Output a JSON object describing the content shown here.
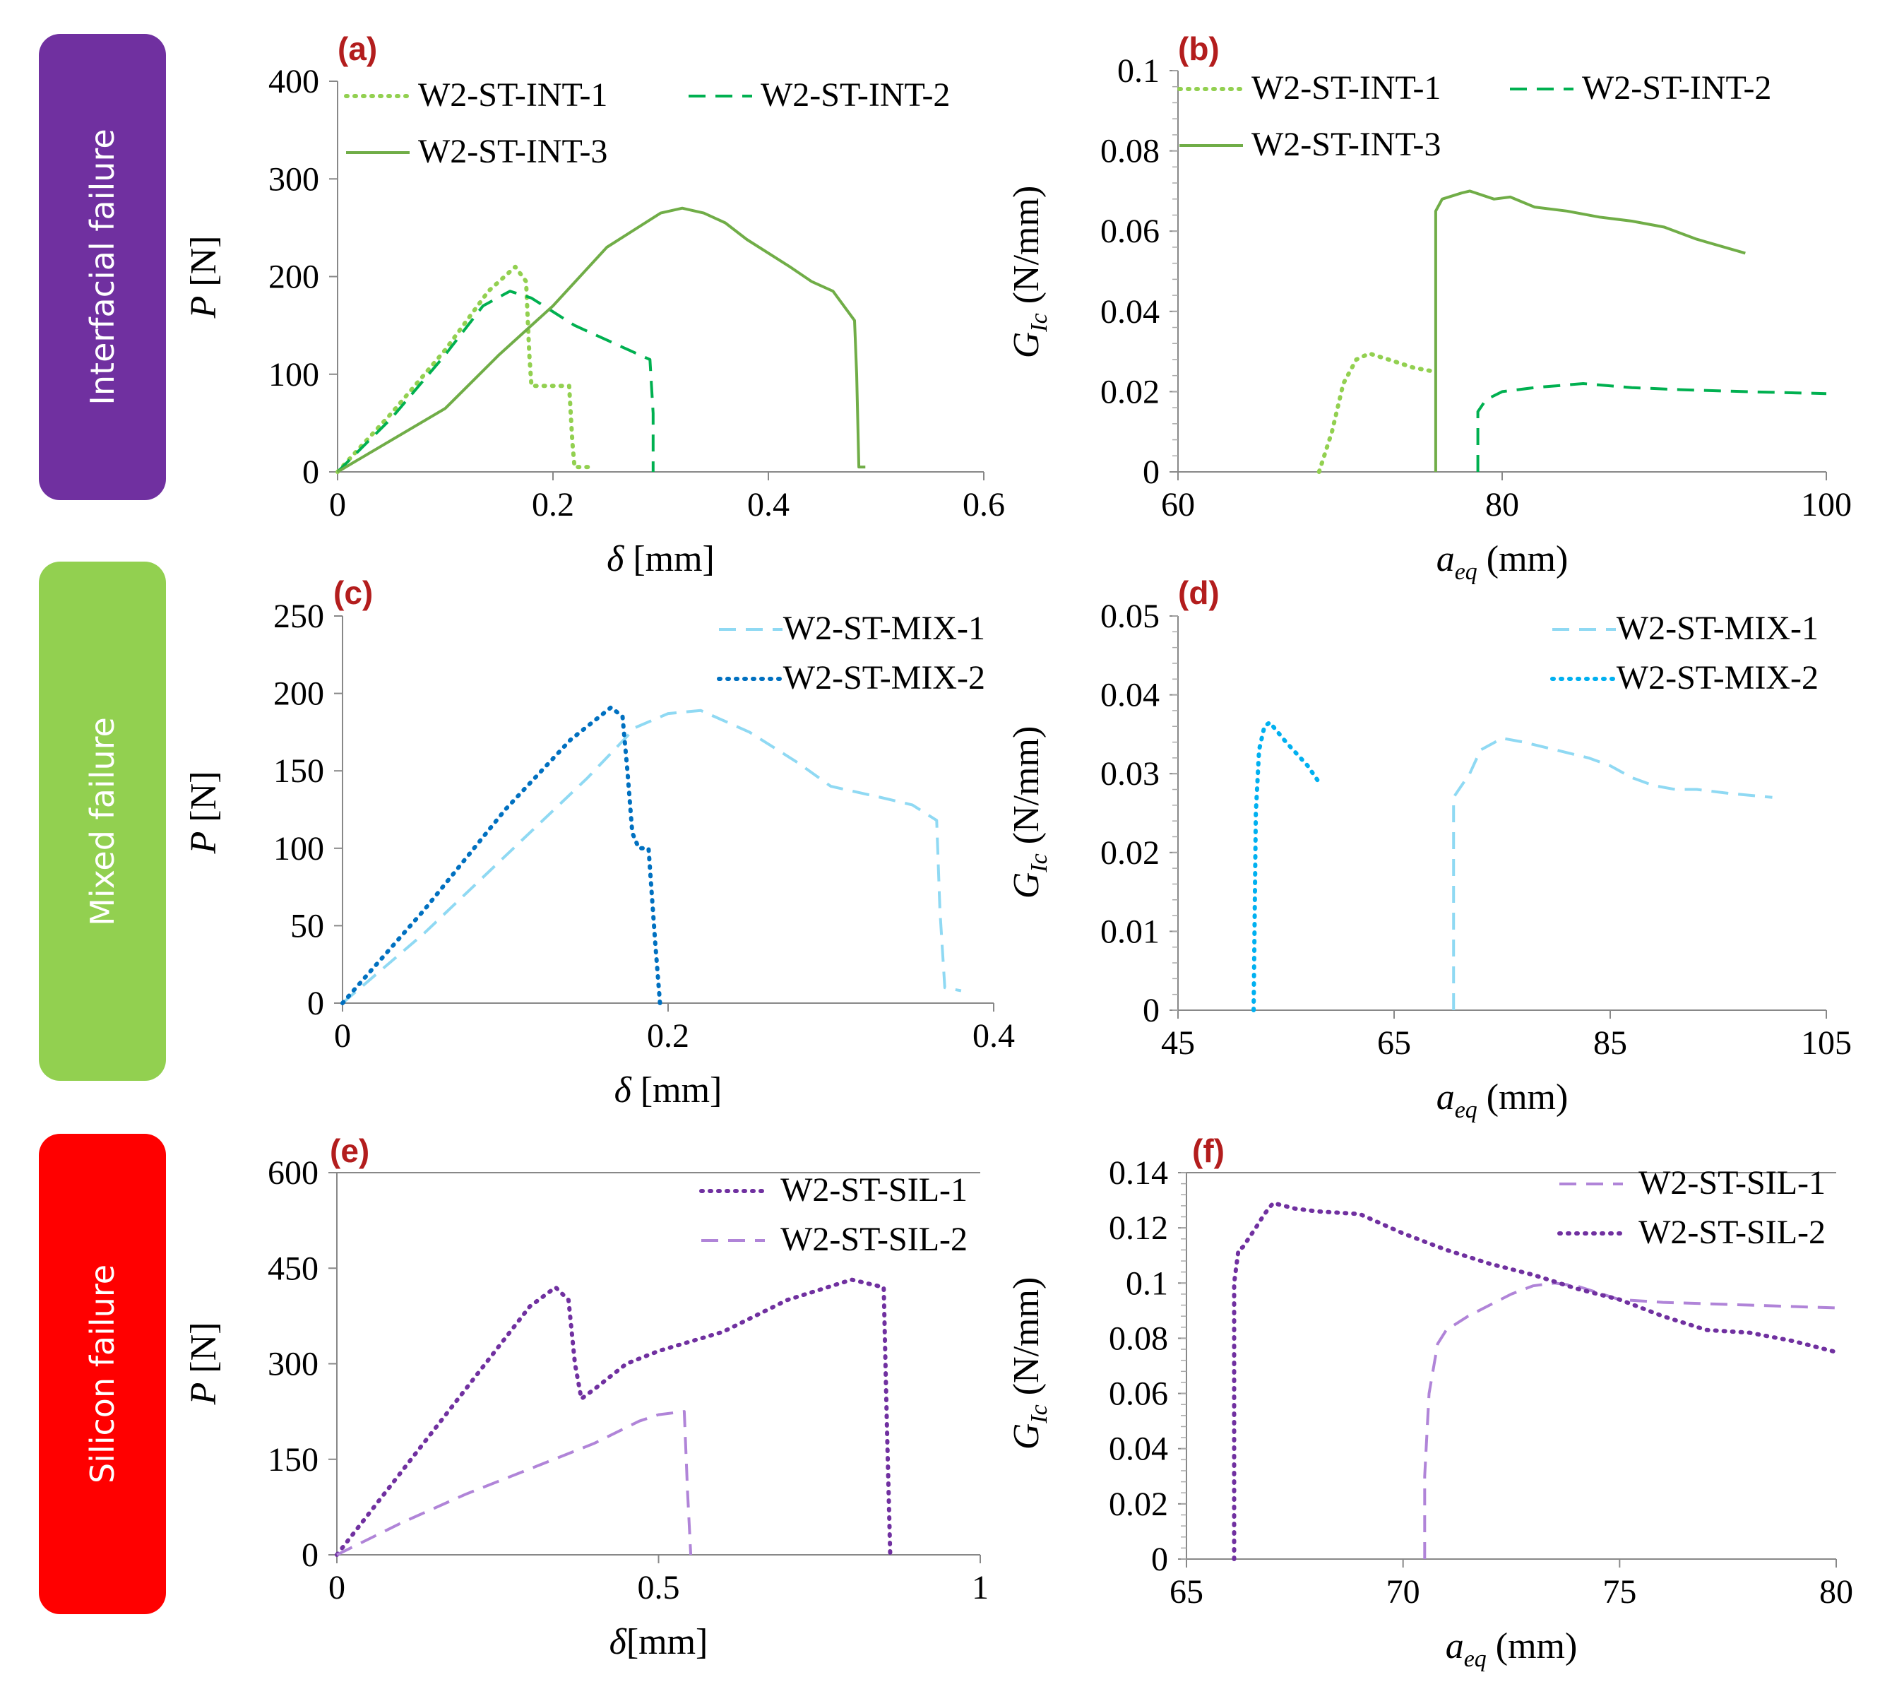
{
  "row_labels": [
    {
      "text": "Interfacial failure",
      "color": "#7030a0"
    },
    {
      "text": "Mixed failure",
      "color": "#92d050"
    },
    {
      "text": "Silicon failure",
      "color": "#ff0000"
    }
  ],
  "chart_data": [
    {
      "panel": "(a)",
      "type": "line",
      "xlabel_sym": "δ",
      "xlabel_unit": " [mm]",
      "ylabel_sym": "P",
      "ylabel_unit": " [N]",
      "xlim": [
        0,
        0.6
      ],
      "ylim": [
        0,
        400
      ],
      "xticks": [
        0,
        0.2,
        0.4,
        0.6
      ],
      "xtick_labels": [
        "0",
        "0.2",
        "0.4",
        "0.6"
      ],
      "yticks": [
        0,
        100,
        200,
        300,
        400
      ],
      "ytick_labels": [
        "0",
        "100",
        "200",
        "300",
        "400"
      ],
      "series": [
        {
          "name": "W2-ST-INT-1",
          "color": "#92d050",
          "dash": "dot",
          "x": [
            0,
            0.05,
            0.1,
            0.14,
            0.165,
            0.175,
            0.178,
            0.18,
            0.2,
            0.215,
            0.218,
            0.22,
            0.235
          ],
          "y": [
            0,
            60,
            125,
            185,
            210,
            195,
            120,
            88,
            88,
            88,
            30,
            5,
            5
          ]
        },
        {
          "name": "W2-ST-INT-2",
          "color": "#00b050",
          "dash": "dash",
          "x": [
            0,
            0.05,
            0.1,
            0.135,
            0.16,
            0.18,
            0.22,
            0.26,
            0.29,
            0.293,
            0.293
          ],
          "y": [
            0,
            55,
            120,
            170,
            185,
            178,
            150,
            130,
            115,
            60,
            0
          ]
        },
        {
          "name": "W2-ST-INT-3",
          "color": "#70ad47",
          "dash": "solid",
          "x": [
            0,
            0.1,
            0.15,
            0.2,
            0.25,
            0.3,
            0.32,
            0.34,
            0.36,
            0.38,
            0.42,
            0.44,
            0.46,
            0.48,
            0.482,
            0.484,
            0.49
          ],
          "y": [
            0,
            65,
            120,
            170,
            230,
            265,
            270,
            265,
            255,
            238,
            210,
            195,
            185,
            155,
            100,
            5,
            5
          ]
        }
      ],
      "legend": "top"
    },
    {
      "panel": "(b)",
      "type": "line",
      "xlabel_sym": "a",
      "xlabel_sub": "eq",
      "xlabel_unit": " (mm)",
      "ylabel_sym": "G",
      "ylabel_sub": "Ic",
      "ylabel_unit": " (N/mm)",
      "xlim": [
        60,
        100
      ],
      "ylim": [
        0,
        0.1
      ],
      "xticks": [
        60,
        80,
        100
      ],
      "xtick_labels": [
        "60",
        "80",
        "100"
      ],
      "yticks": [
        0,
        0.02,
        0.04,
        0.06,
        0.08,
        0.1
      ],
      "ytick_labels": [
        "0",
        "0.02",
        "0.04",
        "0.06",
        "0.08",
        "0.1"
      ],
      "series": [
        {
          "name": "W2-ST-INT-1",
          "color": "#92d050",
          "dash": "dot",
          "x": [
            68.7,
            69.5,
            70.2,
            71,
            71.8,
            73,
            74.5,
            75.8
          ],
          "y": [
            0,
            0.01,
            0.022,
            0.028,
            0.0295,
            0.028,
            0.026,
            0.025
          ]
        },
        {
          "name": "W2-ST-INT-2",
          "color": "#00b050",
          "dash": "dash",
          "x": [
            78.5,
            78.5,
            79,
            80,
            82,
            85,
            88,
            91,
            95,
            100
          ],
          "y": [
            0,
            0.015,
            0.018,
            0.02,
            0.021,
            0.022,
            0.021,
            0.0205,
            0.02,
            0.0195
          ]
        },
        {
          "name": "W2-ST-INT-3",
          "color": "#70ad47",
          "dash": "solid",
          "x": [
            75.9,
            75.9,
            76.3,
            77.5,
            78,
            79.5,
            80.5,
            82,
            84,
            86,
            88,
            90,
            92,
            95
          ],
          "y": [
            0,
            0.065,
            0.068,
            0.0695,
            0.07,
            0.068,
            0.0685,
            0.066,
            0.065,
            0.0635,
            0.0625,
            0.061,
            0.058,
            0.0545
          ]
        }
      ],
      "legend": "top"
    },
    {
      "panel": "(c)",
      "type": "line",
      "xlabel_sym": "δ",
      "xlabel_unit": " [mm]",
      "ylabel_sym": "P",
      "ylabel_unit": " [N]",
      "xlim": [
        0,
        0.4
      ],
      "ylim": [
        0,
        250
      ],
      "xticks": [
        0,
        0.2,
        0.4
      ],
      "xtick_labels": [
        "0",
        "0.2",
        "0.4"
      ],
      "yticks": [
        0,
        50,
        100,
        150,
        200,
        250
      ],
      "ytick_labels": [
        "0",
        "50",
        "100",
        "150",
        "200",
        "250"
      ],
      "series": [
        {
          "name": "W2-ST-MIX-1",
          "color": "#8fd9f3",
          "dash": "dash",
          "x": [
            0,
            0.05,
            0.1,
            0.15,
            0.18,
            0.2,
            0.22,
            0.25,
            0.28,
            0.3,
            0.33,
            0.35,
            0.365,
            0.367,
            0.37,
            0.38
          ],
          "y": [
            0,
            45,
            95,
            145,
            178,
            187,
            189,
            175,
            155,
            140,
            133,
            128,
            118,
            60,
            10,
            8
          ]
        },
        {
          "name": "W2-ST-MIX-2",
          "color": "#0070c0",
          "dash": "dot",
          "x": [
            0,
            0.05,
            0.1,
            0.14,
            0.165,
            0.172,
            0.175,
            0.178,
            0.182,
            0.188,
            0.192,
            0.195
          ],
          "y": [
            0,
            60,
            125,
            170,
            191,
            185,
            150,
            110,
            100,
            100,
            40,
            0
          ]
        }
      ],
      "legend": "top-right"
    },
    {
      "panel": "(d)",
      "type": "line",
      "xlabel_sym": "a",
      "xlabel_sub": "eq",
      "xlabel_unit": " (mm)",
      "ylabel_sym": "G",
      "ylabel_sub": "Ic",
      "ylabel_unit": " (N/mm)",
      "xlim": [
        45,
        105
      ],
      "ylim": [
        0,
        0.05
      ],
      "xticks": [
        45,
        65,
        85,
        105
      ],
      "xtick_labels": [
        "45",
        "65",
        "85",
        "105"
      ],
      "yticks": [
        0,
        0.01,
        0.02,
        0.03,
        0.04,
        0.05
      ],
      "ytick_labels": [
        "0",
        "0.01",
        "0.02",
        "0.03",
        "0.04",
        "0.05"
      ],
      "series": [
        {
          "name": "W2-ST-MIX-1",
          "color": "#8fd9f3",
          "dash": "dash",
          "x": [
            70.5,
            70.5,
            71,
            72,
            73,
            75,
            77,
            80,
            83,
            85,
            87,
            89,
            91,
            93,
            96,
            100
          ],
          "y": [
            0,
            0.027,
            0.028,
            0.03,
            0.033,
            0.0345,
            0.034,
            0.033,
            0.032,
            0.031,
            0.0295,
            0.0285,
            0.028,
            0.028,
            0.0275,
            0.027
          ]
        },
        {
          "name": "W2-ST-MIX-2",
          "color": "#00b0f0",
          "dash": "dot",
          "x": [
            52,
            52.2,
            52.5,
            53,
            53.5,
            55,
            57,
            58
          ],
          "y": [
            0,
            0.025,
            0.033,
            0.036,
            0.0365,
            0.034,
            0.031,
            0.029
          ]
        }
      ],
      "legend": "top-right"
    },
    {
      "panel": "(e)",
      "type": "line",
      "xlabel_sym": "δ",
      "xlabel_unit": "[mm]",
      "ylabel_sym": "P",
      "ylabel_unit": " [N]",
      "xlim": [
        0,
        1
      ],
      "ylim": [
        0,
        600
      ],
      "xticks": [
        0,
        0.5,
        1
      ],
      "xtick_labels": [
        "0",
        "0.5",
        "1"
      ],
      "yticks": [
        0,
        150,
        300,
        450,
        600
      ],
      "ytick_labels": [
        "0",
        "150",
        "300",
        "450",
        "600"
      ],
      "series": [
        {
          "name": "W2-ST-SIL-1",
          "color": "#7030a0",
          "dash": "dot",
          "x": [
            0,
            0.1,
            0.2,
            0.3,
            0.34,
            0.36,
            0.37,
            0.38,
            0.4,
            0.45,
            0.5,
            0.6,
            0.7,
            0.8,
            0.85,
            0.855,
            0.86
          ],
          "y": [
            0,
            130,
            260,
            390,
            420,
            400,
            300,
            245,
            260,
            300,
            320,
            350,
            400,
            432,
            420,
            200,
            0
          ]
        },
        {
          "name": "W2-ST-SIL-2",
          "color": "#b084d8",
          "dash": "dash",
          "x": [
            0,
            0.1,
            0.2,
            0.3,
            0.4,
            0.47,
            0.5,
            0.54,
            0.545,
            0.55
          ],
          "y": [
            0,
            50,
            95,
            135,
            175,
            210,
            220,
            225,
            100,
            0
          ]
        }
      ],
      "legend": "top-right"
    },
    {
      "panel": "(f)",
      "type": "line",
      "xlabel_sym": "a",
      "xlabel_sub": "eq",
      "xlabel_unit": " (mm)",
      "ylabel_sym": "G",
      "ylabel_sub": "Ic",
      "ylabel_unit": " (N/mm)",
      "xlim": [
        65,
        80
      ],
      "ylim": [
        0,
        0.14
      ],
      "xticks": [
        65,
        70,
        75,
        80
      ],
      "xtick_labels": [
        "65",
        "70",
        "75",
        "80"
      ],
      "yticks": [
        0,
        0.02,
        0.04,
        0.06,
        0.08,
        0.1,
        0.12,
        0.14
      ],
      "ytick_labels": [
        "0",
        "0.02",
        "0.04",
        "0.06",
        "0.08",
        "0.1",
        "0.12",
        "0.14"
      ],
      "series": [
        {
          "name": "W2-ST-SIL-1",
          "color": "#b084d8",
          "dash": "dash",
          "x": [
            70.5,
            70.5,
            70.6,
            70.8,
            71,
            71.5,
            72,
            72.5,
            73,
            73.5,
            74,
            75,
            76,
            78,
            80
          ],
          "y": [
            0,
            0.03,
            0.06,
            0.078,
            0.083,
            0.088,
            0.092,
            0.096,
            0.099,
            0.1,
            0.099,
            0.094,
            0.093,
            0.092,
            0.091
          ]
        },
        {
          "name": "W2-ST-SIL-2",
          "color": "#7030a0",
          "dash": "dot",
          "x": [
            66.1,
            66.1,
            66.2,
            66.3,
            66.6,
            66.8,
            67,
            67.5,
            68,
            69,
            70,
            71,
            72,
            73,
            74,
            75,
            76,
            77,
            78,
            79,
            80
          ],
          "y": [
            0,
            0.1,
            0.112,
            0.113,
            0.12,
            0.125,
            0.129,
            0.127,
            0.126,
            0.125,
            0.118,
            0.112,
            0.107,
            0.103,
            0.098,
            0.094,
            0.088,
            0.083,
            0.082,
            0.079,
            0.075
          ]
        }
      ],
      "legend": "top-right"
    }
  ]
}
